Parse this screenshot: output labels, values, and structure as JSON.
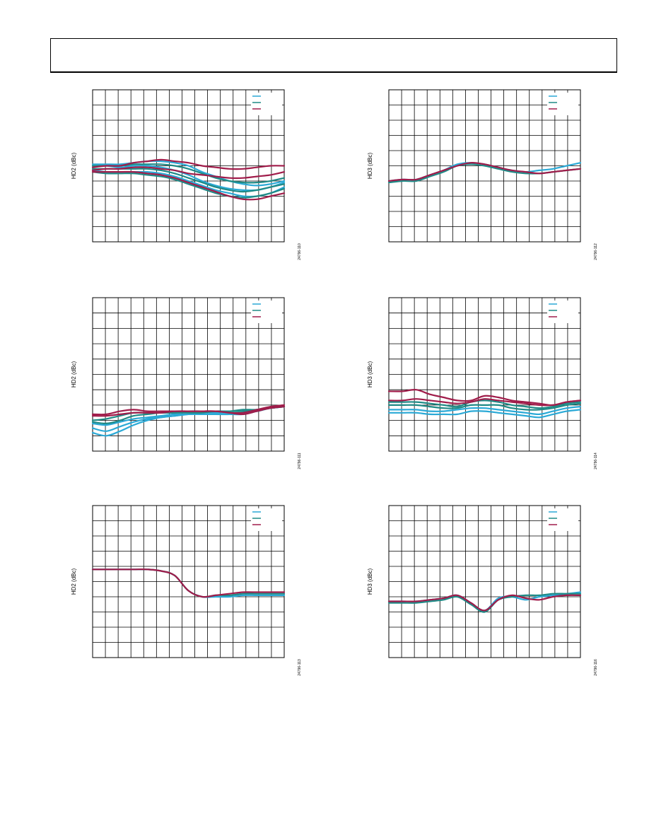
{
  "header": {
    "title": ""
  },
  "colors": {
    "cyan": "#2aa9d6",
    "teal": "#1f8a86",
    "maroon": "#a01c4a",
    "grid": "#000000"
  },
  "chart_data": [
    {
      "id": "c1",
      "type": "line",
      "ylabel": "HD2 (dBc)",
      "figure_code": "24796-110",
      "x_divisions": 15,
      "y_divisions": 10,
      "ylim": [
        0,
        10
      ],
      "series": [
        {
          "color_key": "cyan",
          "values": [
            5.1,
            5.1,
            5.1,
            5.2,
            5.3,
            5.3,
            5.2,
            5.0,
            4.6,
            4.3,
            4.0,
            3.8,
            3.7,
            3.8,
            4.0
          ]
        },
        {
          "color_key": "cyan",
          "values": [
            5.0,
            5.0,
            4.9,
            5.0,
            5.0,
            4.9,
            4.7,
            4.4,
            4.0,
            3.7,
            3.5,
            3.4,
            3.4,
            3.6,
            3.9
          ]
        },
        {
          "color_key": "cyan",
          "values": [
            4.7,
            4.6,
            4.6,
            4.6,
            4.6,
            4.5,
            4.3,
            4.0,
            3.7,
            3.4,
            3.2,
            3.0,
            3.0,
            3.2,
            3.6
          ]
        },
        {
          "color_key": "teal",
          "values": [
            5.0,
            5.0,
            5.0,
            5.1,
            5.1,
            5.1,
            5.0,
            4.8,
            4.5,
            4.2,
            4.0,
            3.9,
            3.9,
            4.0,
            4.2
          ]
        },
        {
          "color_key": "teal",
          "values": [
            4.8,
            4.8,
            4.8,
            4.8,
            4.8,
            4.7,
            4.5,
            4.2,
            3.9,
            3.6,
            3.4,
            3.3,
            3.4,
            3.6,
            3.8
          ]
        },
        {
          "color_key": "teal",
          "values": [
            4.6,
            4.5,
            4.5,
            4.5,
            4.4,
            4.3,
            4.1,
            3.8,
            3.5,
            3.2,
            3.0,
            2.9,
            3.0,
            3.2,
            3.5
          ]
        },
        {
          "color_key": "maroon",
          "values": [
            4.9,
            5.0,
            5.0,
            5.2,
            5.3,
            5.4,
            5.3,
            5.2,
            5.0,
            4.9,
            4.8,
            4.8,
            4.9,
            5.0,
            5.0
          ]
        },
        {
          "color_key": "maroon",
          "values": [
            4.7,
            4.8,
            4.8,
            4.9,
            4.9,
            4.8,
            4.7,
            4.5,
            4.4,
            4.3,
            4.2,
            4.2,
            4.3,
            4.4,
            4.6
          ]
        },
        {
          "color_key": "maroon",
          "values": [
            4.6,
            4.6,
            4.6,
            4.6,
            4.5,
            4.4,
            4.2,
            3.9,
            3.6,
            3.3,
            3.0,
            2.8,
            2.8,
            3.0,
            3.2
          ]
        }
      ]
    },
    {
      "id": "c2",
      "type": "line",
      "ylabel": "HD3 (dBc)",
      "figure_code": "24796-112",
      "x_divisions": 15,
      "y_divisions": 10,
      "ylim": [
        0,
        10
      ],
      "series": [
        {
          "color_key": "cyan",
          "values": [
            4.0,
            4.1,
            4.1,
            4.4,
            4.7,
            5.1,
            5.2,
            5.1,
            4.9,
            4.7,
            4.6,
            4.7,
            4.8,
            5.0,
            5.2
          ]
        },
        {
          "color_key": "teal",
          "values": [
            3.9,
            4.0,
            4.0,
            4.3,
            4.6,
            5.0,
            5.1,
            5.0,
            4.8,
            4.6,
            4.5,
            4.5,
            4.6,
            4.7,
            4.8
          ]
        },
        {
          "color_key": "maroon",
          "values": [
            4.0,
            4.1,
            4.1,
            4.4,
            4.7,
            5.0,
            5.2,
            5.1,
            4.9,
            4.7,
            4.6,
            4.5,
            4.6,
            4.7,
            4.8
          ]
        }
      ]
    },
    {
      "id": "c3",
      "type": "line",
      "ylabel": "HD2 (dBc)",
      "figure_code": "24796-111",
      "x_divisions": 15,
      "y_divisions": 10,
      "ylim": [
        0,
        10
      ],
      "series": [
        {
          "color_key": "cyan",
          "values": [
            1.2,
            1.0,
            1.3,
            1.7,
            2.0,
            2.2,
            2.3,
            2.4,
            2.4,
            2.4,
            2.4,
            2.4,
            2.6,
            2.8,
            2.9
          ]
        },
        {
          "color_key": "cyan",
          "values": [
            1.5,
            1.3,
            1.6,
            1.9,
            2.1,
            2.2,
            2.3,
            2.4,
            2.4,
            2.4,
            2.4,
            2.5,
            2.6,
            2.8,
            2.9
          ]
        },
        {
          "color_key": "cyan",
          "values": [
            1.8,
            1.7,
            1.9,
            2.1,
            2.2,
            2.3,
            2.4,
            2.4,
            2.5,
            2.5,
            2.5,
            2.5,
            2.7,
            2.8,
            2.9
          ]
        },
        {
          "color_key": "teal",
          "values": [
            1.9,
            1.8,
            2.0,
            2.3,
            2.4,
            2.5,
            2.5,
            2.5,
            2.5,
            2.6,
            2.6,
            2.7,
            2.7,
            2.8,
            2.9
          ]
        },
        {
          "color_key": "teal",
          "values": [
            2.0,
            2.1,
            2.3,
            2.5,
            2.5,
            2.5,
            2.5,
            2.6,
            2.6,
            2.6,
            2.6,
            2.6,
            2.7,
            2.8,
            2.9
          ]
        },
        {
          "color_key": "maroon",
          "values": [
            2.4,
            2.4,
            2.6,
            2.7,
            2.6,
            2.6,
            2.6,
            2.6,
            2.6,
            2.6,
            2.5,
            2.5,
            2.7,
            2.9,
            3.0
          ]
        },
        {
          "color_key": "maroon",
          "values": [
            2.3,
            2.3,
            2.4,
            2.5,
            2.5,
            2.5,
            2.6,
            2.6,
            2.6,
            2.6,
            2.5,
            2.4,
            2.6,
            2.8,
            2.9
          ]
        }
      ]
    },
    {
      "id": "c4",
      "type": "line",
      "ylabel": "HD3 (dBc)",
      "figure_code": "24796-114",
      "x_divisions": 15,
      "y_divisions": 10,
      "ylim": [
        0,
        10
      ],
      "series": [
        {
          "color_key": "cyan",
          "values": [
            2.7,
            2.7,
            2.7,
            2.6,
            2.6,
            2.7,
            2.8,
            2.8,
            2.7,
            2.6,
            2.5,
            2.4,
            2.6,
            2.8,
            2.9
          ]
        },
        {
          "color_key": "cyan",
          "values": [
            2.5,
            2.5,
            2.5,
            2.4,
            2.4,
            2.4,
            2.6,
            2.6,
            2.5,
            2.4,
            2.3,
            2.2,
            2.4,
            2.6,
            2.7
          ]
        },
        {
          "color_key": "teal",
          "values": [
            3.2,
            3.2,
            3.2,
            3.1,
            3.0,
            2.9,
            3.2,
            3.3,
            3.2,
            3.0,
            2.9,
            2.8,
            2.9,
            3.1,
            3.2
          ]
        },
        {
          "color_key": "teal",
          "values": [
            3.0,
            3.0,
            3.0,
            2.9,
            2.8,
            2.8,
            3.0,
            3.0,
            3.0,
            2.8,
            2.7,
            2.7,
            2.8,
            3.0,
            3.1
          ]
        },
        {
          "color_key": "maroon",
          "values": [
            3.9,
            3.9,
            4.0,
            3.7,
            3.5,
            3.3,
            3.3,
            3.6,
            3.5,
            3.3,
            3.2,
            3.1,
            3.0,
            3.2,
            3.3
          ]
        },
        {
          "color_key": "maroon",
          "values": [
            3.3,
            3.3,
            3.4,
            3.3,
            3.2,
            3.1,
            3.2,
            3.4,
            3.3,
            3.2,
            3.1,
            3.0,
            3.0,
            3.2,
            3.3
          ]
        }
      ]
    },
    {
      "id": "c5",
      "type": "line",
      "ylabel": "HD2 (dBc)",
      "figure_code": "24796-113",
      "x_divisions": 15,
      "y_divisions": 10,
      "ylim": [
        0,
        10
      ],
      "series": [
        {
          "color_key": "cyan",
          "values": [
            5.8,
            5.8,
            5.8,
            5.8,
            5.8,
            5.7,
            5.4,
            4.4,
            4.0,
            4.0,
            4.0,
            4.1,
            4.1,
            4.1,
            4.1
          ]
        },
        {
          "color_key": "teal",
          "values": [
            5.8,
            5.8,
            5.8,
            5.8,
            5.8,
            5.7,
            5.4,
            4.4,
            4.0,
            4.1,
            4.1,
            4.2,
            4.2,
            4.2,
            4.2
          ]
        },
        {
          "color_key": "maroon",
          "values": [
            5.8,
            5.8,
            5.8,
            5.8,
            5.8,
            5.7,
            5.4,
            4.4,
            4.0,
            4.1,
            4.2,
            4.3,
            4.3,
            4.3,
            4.3
          ]
        }
      ]
    },
    {
      "id": "c6",
      "type": "line",
      "ylabel": "HD3 (dBc)",
      "figure_code": "24796-116",
      "x_divisions": 15,
      "y_divisions": 10,
      "ylim": [
        0,
        10
      ],
      "series": [
        {
          "color_key": "cyan",
          "values": [
            3.7,
            3.7,
            3.7,
            3.8,
            3.9,
            4.1,
            3.6,
            3.1,
            3.9,
            4.0,
            3.8,
            4.0,
            4.1,
            4.2,
            4.3
          ]
        },
        {
          "color_key": "teal",
          "values": [
            3.6,
            3.6,
            3.6,
            3.7,
            3.8,
            4.0,
            3.5,
            3.0,
            3.8,
            4.0,
            4.1,
            4.1,
            4.2,
            4.2,
            4.2
          ]
        },
        {
          "color_key": "maroon",
          "values": [
            3.7,
            3.7,
            3.7,
            3.8,
            3.9,
            4.1,
            3.6,
            3.1,
            3.8,
            4.1,
            3.9,
            3.8,
            4.0,
            4.1,
            4.1
          ]
        }
      ]
    }
  ]
}
